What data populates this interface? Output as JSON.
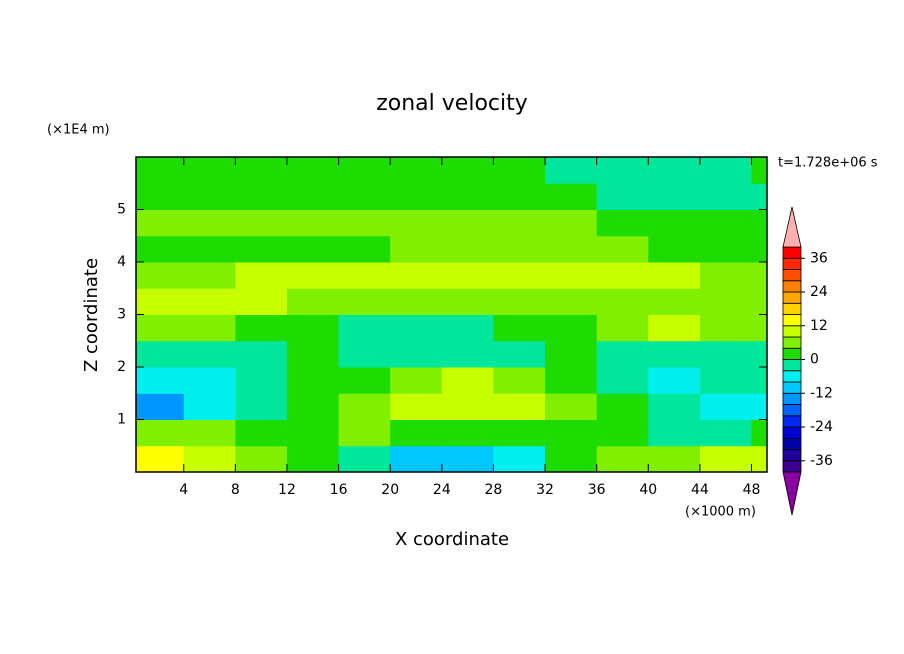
{
  "chart_data": {
    "type": "contour",
    "title": "zonal velocity",
    "x_label": "X coordinate",
    "y_label": "Z coordinate",
    "x_unit": "(×1000 m)",
    "y_unit": "(×1E4 m)",
    "time_label": "t=1.728e+06 s",
    "xlim": [
      0.3,
      49.2
    ],
    "ylim": [
      0,
      6
    ],
    "xticks": [
      4,
      8,
      12,
      16,
      20,
      24,
      28,
      32,
      36,
      40,
      44,
      48
    ],
    "yticks": [
      1,
      2,
      3,
      4,
      5
    ],
    "x": [
      2,
      6,
      10,
      14,
      18,
      22,
      26,
      30,
      34,
      38,
      42,
      46,
      50
    ],
    "y": [
      0.25,
      0.75,
      1.25,
      1.75,
      2.25,
      2.75,
      3.25,
      3.75,
      4.25,
      4.75,
      5.25,
      5.75
    ],
    "values": [
      [
        12,
        10,
        6,
        2,
        -4,
        -10,
        -12,
        -6,
        2,
        4,
        6,
        8,
        10
      ],
      [
        6,
        4,
        0,
        2,
        4,
        2,
        0,
        2,
        2,
        0,
        -2,
        -2,
        0
      ],
      [
        -14,
        -8,
        -4,
        2,
        6,
        10,
        10,
        8,
        4,
        0,
        -4,
        -8,
        -8
      ],
      [
        -8,
        -8,
        -4,
        0,
        2,
        4,
        8,
        6,
        2,
        -2,
        -6,
        -4,
        -2
      ],
      [
        -2,
        -4,
        -2,
        0,
        -2,
        -2,
        -2,
        -2,
        0,
        -2,
        -2,
        -2,
        -2
      ],
      [
        4,
        4,
        2,
        2,
        -2,
        -2,
        -2,
        0,
        2,
        6,
        8,
        6,
        4
      ],
      [
        8,
        10,
        8,
        6,
        6,
        4,
        4,
        4,
        6,
        6,
        6,
        6,
        6
      ],
      [
        6,
        6,
        8,
        10,
        10,
        10,
        8,
        8,
        10,
        10,
        8,
        6,
        4
      ],
      [
        2,
        2,
        2,
        2,
        2,
        4,
        6,
        6,
        4,
        4,
        2,
        2,
        2
      ],
      [
        4,
        4,
        4,
        4,
        4,
        4,
        4,
        4,
        4,
        2,
        2,
        2,
        2
      ],
      [
        2,
        2,
        2,
        2,
        2,
        2,
        2,
        2,
        2,
        -2,
        -2,
        -2,
        -2
      ],
      [
        2,
        2,
        2,
        2,
        2,
        2,
        2,
        2,
        -2,
        -2,
        -2,
        -2,
        2
      ]
    ],
    "levels": [
      -40,
      -36,
      -32,
      -28,
      -24,
      -20,
      -16,
      -12,
      -8,
      -4,
      0,
      4,
      8,
      12,
      16,
      20,
      24,
      28,
      32,
      36,
      40
    ],
    "colors": [
      "#8b00a0",
      "#3c0090",
      "#1e009a",
      "#0000a8",
      "#0000d2",
      "#0028f0",
      "#0064ff",
      "#0096ff",
      "#00c8ff",
      "#00f0f0",
      "#00e69a",
      "#1edc00",
      "#80f000",
      "#c8ff00",
      "#ffff00",
      "#ffd200",
      "#ffa500",
      "#ff8000",
      "#ff5000",
      "#ff2800",
      "#ff0000",
      "#ffb0b0"
    ],
    "colorbar_ticks": [
      -36,
      -24,
      -12,
      0,
      12,
      24,
      36
    ]
  }
}
